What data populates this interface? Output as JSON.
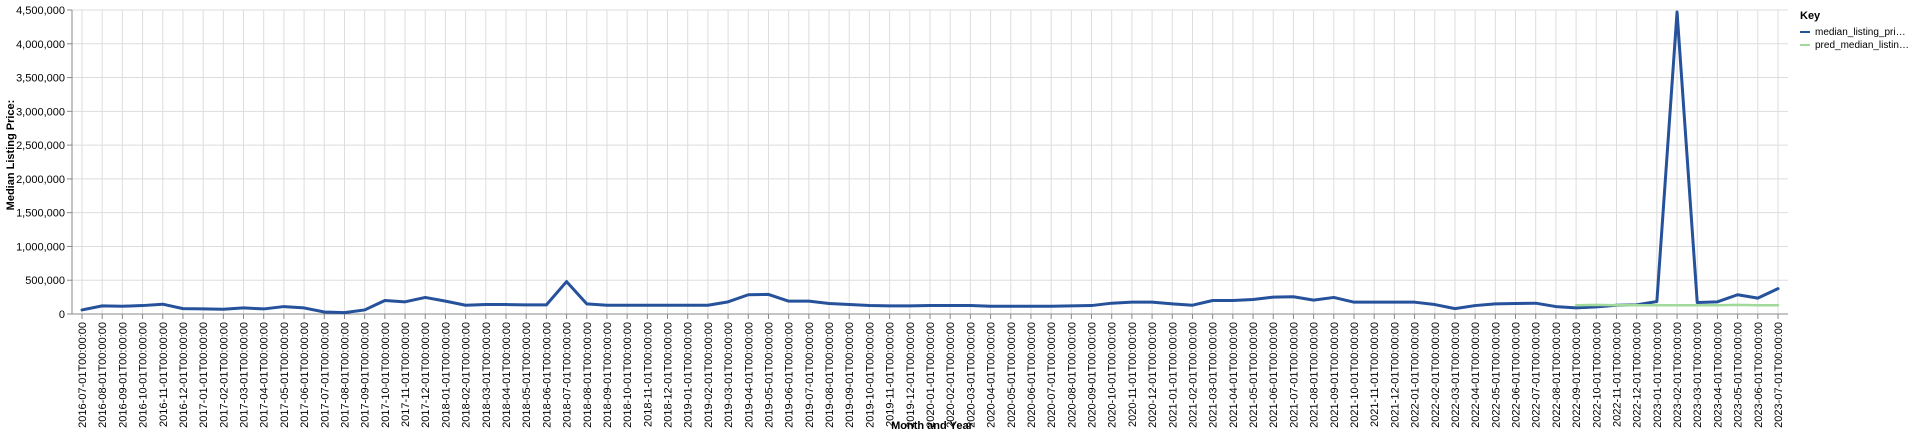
{
  "chart_data": {
    "type": "line",
    "title": "",
    "xlabel": "Month and Year",
    "ylabel": "Median Listing Price:",
    "ylim": [
      0,
      4500000
    ],
    "y_ticks": [
      0,
      500000,
      1000000,
      1500000,
      2000000,
      2500000,
      3000000,
      3500000,
      4000000,
      4500000
    ],
    "y_tick_labels": [
      "0",
      "500,000",
      "1,000,000",
      "1,500,000",
      "2,000,000",
      "2,500,000",
      "3,000,000",
      "3,500,000",
      "4,000,000",
      "4,500,000"
    ],
    "grid": true,
    "legend": {
      "title": "Key",
      "position": "top-right",
      "labels": [
        "median_listing_pri…",
        "pred_median_listin…"
      ]
    },
    "x": [
      "2016-07-01T00:00:00",
      "2016-08-01T00:00:00",
      "2016-09-01T00:00:00",
      "2016-10-01T00:00:00",
      "2016-11-01T00:00:00",
      "2016-12-01T00:00:00",
      "2017-01-01T00:00:00",
      "2017-02-01T00:00:00",
      "2017-03-01T00:00:00",
      "2017-04-01T00:00:00",
      "2017-05-01T00:00:00",
      "2017-06-01T00:00:00",
      "2017-07-01T00:00:00",
      "2017-08-01T00:00:00",
      "2017-09-01T00:00:00",
      "2017-10-01T00:00:00",
      "2017-11-01T00:00:00",
      "2017-12-01T00:00:00",
      "2018-01-01T00:00:00",
      "2018-02-01T00:00:00",
      "2018-03-01T00:00:00",
      "2018-04-01T00:00:00",
      "2018-05-01T00:00:00",
      "2018-06-01T00:00:00",
      "2018-07-01T00:00:00",
      "2018-08-01T00:00:00",
      "2018-09-01T00:00:00",
      "2018-10-01T00:00:00",
      "2018-11-01T00:00:00",
      "2018-12-01T00:00:00",
      "2019-01-01T00:00:00",
      "2019-02-01T00:00:00",
      "2019-03-01T00:00:00",
      "2019-04-01T00:00:00",
      "2019-05-01T00:00:00",
      "2019-06-01T00:00:00",
      "2019-07-01T00:00:00",
      "2019-08-01T00:00:00",
      "2019-09-01T00:00:00",
      "2019-10-01T00:00:00",
      "2019-11-01T00:00:00",
      "2019-12-01T00:00:00",
      "2020-01-01T00:00:00",
      "2020-02-01T00:00:00",
      "2020-03-01T00:00:00",
      "2020-04-01T00:00:00",
      "2020-05-01T00:00:00",
      "2020-06-01T00:00:00",
      "2020-07-01T00:00:00",
      "2020-08-01T00:00:00",
      "2020-09-01T00:00:00",
      "2020-10-01T00:00:00",
      "2020-11-01T00:00:00",
      "2020-12-01T00:00:00",
      "2021-01-01T00:00:00",
      "2021-02-01T00:00:00",
      "2021-03-01T00:00:00",
      "2021-04-01T00:00:00",
      "2021-05-01T00:00:00",
      "2021-06-01T00:00:00",
      "2021-07-01T00:00:00",
      "2021-08-01T00:00:00",
      "2021-09-01T00:00:00",
      "2021-10-01T00:00:00",
      "2021-11-01T00:00:00",
      "2021-12-01T00:00:00",
      "2022-01-01T00:00:00",
      "2022-02-01T00:00:00",
      "2022-03-01T00:00:00",
      "2022-04-01T00:00:00",
      "2022-05-01T00:00:00",
      "2022-06-01T00:00:00",
      "2022-07-01T00:00:00",
      "2022-08-01T00:00:00",
      "2022-09-01T00:00:00",
      "2022-10-01T00:00:00",
      "2022-11-01T00:00:00",
      "2022-12-01T00:00:00",
      "2023-01-01T00:00:00",
      "2023-02-01T00:00:00",
      "2023-03-01T00:00:00",
      "2023-04-01T00:00:00",
      "2023-05-01T00:00:00",
      "2023-06-01T00:00:00",
      "2023-07-01T00:00:00"
    ],
    "series": [
      {
        "name": "median_listing_pri…",
        "color": "#26519b",
        "values": [
          60000,
          120000,
          115000,
          125000,
          145000,
          80000,
          75000,
          70000,
          90000,
          75000,
          110000,
          90000,
          30000,
          20000,
          60000,
          200000,
          180000,
          245000,
          190000,
          130000,
          140000,
          140000,
          135000,
          135000,
          480000,
          150000,
          130000,
          130000,
          130000,
          130000,
          130000,
          130000,
          180000,
          285000,
          290000,
          190000,
          190000,
          155000,
          140000,
          125000,
          120000,
          120000,
          125000,
          125000,
          125000,
          115000,
          115000,
          115000,
          115000,
          120000,
          125000,
          160000,
          175000,
          175000,
          150000,
          130000,
          200000,
          200000,
          215000,
          250000,
          255000,
          205000,
          245000,
          175000,
          175000,
          175000,
          175000,
          140000,
          80000,
          125000,
          150000,
          155000,
          160000,
          110000,
          90000,
          105000,
          130000,
          135000,
          185000,
          4470000,
          170000,
          180000,
          285000,
          235000,
          375000
        ]
      },
      {
        "name": "pred_median_listin…",
        "color": "#a1d99b",
        "values": [
          null,
          null,
          null,
          null,
          null,
          null,
          null,
          null,
          null,
          null,
          null,
          null,
          null,
          null,
          null,
          null,
          null,
          null,
          null,
          null,
          null,
          null,
          null,
          null,
          null,
          null,
          null,
          null,
          null,
          null,
          null,
          null,
          null,
          null,
          null,
          null,
          null,
          null,
          null,
          null,
          null,
          null,
          null,
          null,
          null,
          null,
          null,
          null,
          null,
          null,
          null,
          null,
          null,
          null,
          null,
          null,
          null,
          null,
          null,
          null,
          null,
          null,
          null,
          null,
          null,
          null,
          null,
          null,
          null,
          null,
          null,
          null,
          null,
          null,
          130000,
          135000,
          130000,
          130000,
          130000,
          130000,
          130000,
          130000,
          135000,
          130000,
          130000
        ]
      }
    ]
  }
}
